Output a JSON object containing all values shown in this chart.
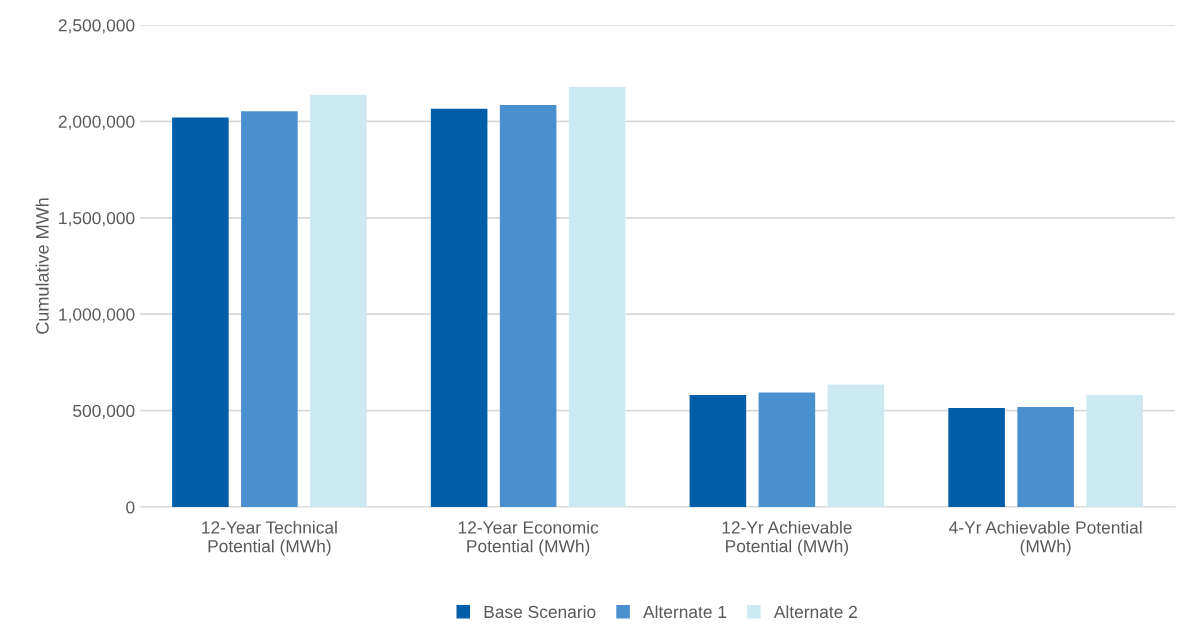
{
  "chart_data": {
    "type": "bar",
    "ylabel": "Cumulative MWh",
    "categories": [
      "12-Year Technical\nPotential (MWh)",
      "12-Year Economic\nPotential (MWh)",
      "12-Yr Achievable\nPotential (MWh)",
      "4-Yr Achievable Potential\n(MWh)"
    ],
    "series": [
      {
        "name": "Base Scenario",
        "color": "#005ea8",
        "values": [
          2020000,
          2065000,
          581000,
          513000
        ]
      },
      {
        "name": "Alternate 1",
        "color": "#4a90cf",
        "values": [
          2052000,
          2085000,
          594000,
          519000
        ]
      },
      {
        "name": "Alternate 2",
        "color": "#cce9f1",
        "values": [
          2138000,
          2178000,
          635000,
          581000
        ]
      }
    ],
    "ylim": [
      0,
      2500000
    ],
    "yticks": [
      {
        "value": 0,
        "label": "0"
      },
      {
        "value": 500000,
        "label": "500,000"
      },
      {
        "value": 1000000,
        "label": "1,000,000"
      },
      {
        "value": 1500000,
        "label": "1,500,000"
      },
      {
        "value": 2000000,
        "label": "2,000,000"
      },
      {
        "value": 2500000,
        "label": "2,500,000"
      }
    ],
    "grid": "y",
    "legend": "bottom"
  }
}
